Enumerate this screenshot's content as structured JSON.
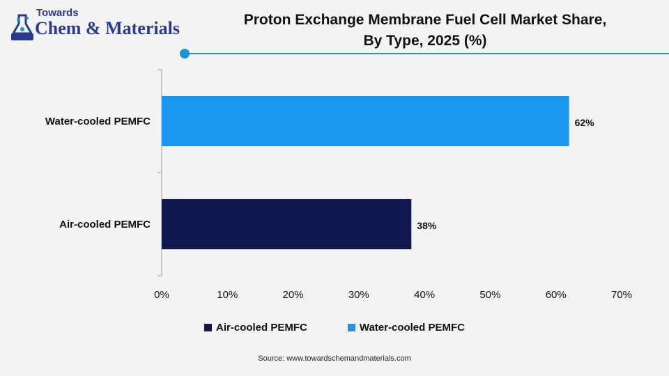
{
  "brand": {
    "top": "Towards",
    "name": "Chem & Materials",
    "color": "#2b3a8f"
  },
  "title_line1": "Proton Exchange Membrane Fuel Cell Market Share,",
  "title_line2": "By Type, 2025 (%)",
  "accent_color": "#1a96d4",
  "source": "Source: www.towardschemandmaterials.com",
  "chart_data": {
    "type": "bar",
    "orientation": "horizontal",
    "categories": [
      "Water-cooled PEMFC",
      "Air-cooled PEMFC"
    ],
    "values": [
      62,
      38
    ],
    "value_labels": [
      "62%",
      "38%"
    ],
    "colors": [
      "#1a96f0",
      "#10184f"
    ],
    "x_ticks": [
      "0%",
      "10%",
      "20%",
      "30%",
      "40%",
      "50%",
      "60%",
      "70%"
    ],
    "xlim": [
      0,
      70
    ],
    "grid": false,
    "legend_position": "bottom",
    "legend": [
      {
        "label": "Air-cooled PEMFC",
        "color": "#10184f"
      },
      {
        "label": "Water-cooled PEMFC",
        "color": "#1a96f0"
      }
    ]
  }
}
